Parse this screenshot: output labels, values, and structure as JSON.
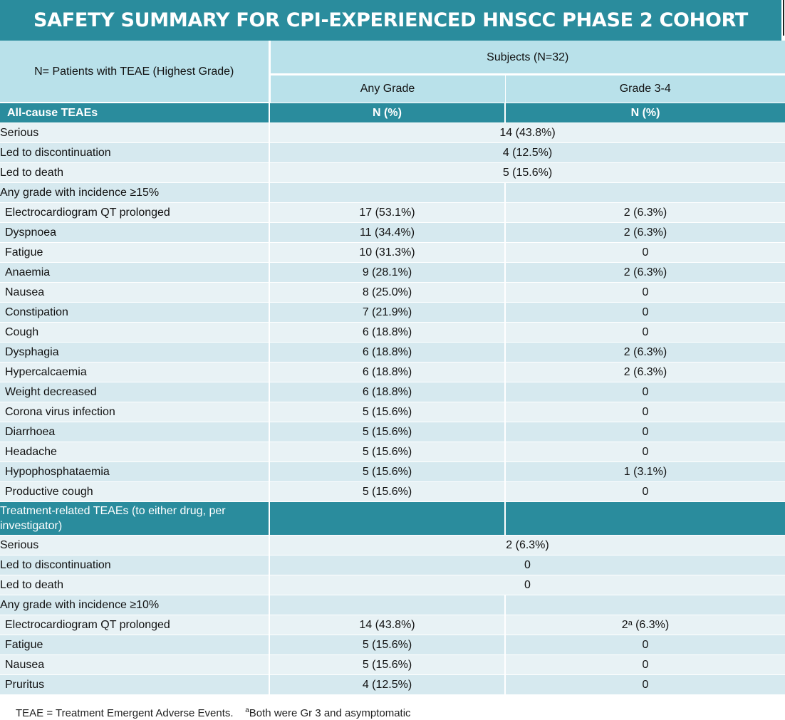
{
  "title": "SAFETY SUMMARY FOR CPI-EXPERIENCED HNSCC PHASE 2 COHORT",
  "header": {
    "row_label": "N= Patients with TEAE (Highest Grade)",
    "subjects": "Subjects (N=32)",
    "col_any": "Any Grade",
    "col_g34": "Grade 3-4"
  },
  "section1": {
    "label": "All-cause TEAEs",
    "col_any": "N (%)",
    "col_g34": "N (%)",
    "overall": [
      {
        "label": "Serious",
        "value": "14 (43.8%)"
      },
      {
        "label": "Led to discontinuation",
        "value": "4 (12.5%)"
      },
      {
        "label": "Led to death",
        "value": "5 (15.6%)"
      }
    ],
    "incidence_label": "Any grade with incidence ≥15%",
    "events": [
      {
        "label": "Electrocardiogram QT prolonged",
        "any": "17 (53.1%)",
        "g34": "2 (6.3%)"
      },
      {
        "label": "Dyspnoea",
        "any": "11 (34.4%)",
        "g34": "2 (6.3%)"
      },
      {
        "label": "Fatigue",
        "any": "10 (31.3%)",
        "g34": "0"
      },
      {
        "label": "Anaemia",
        "any": "9 (28.1%)",
        "g34": "2 (6.3%)"
      },
      {
        "label": "Nausea",
        "any": "8 (25.0%)",
        "g34": "0"
      },
      {
        "label": "Constipation",
        "any": "7 (21.9%)",
        "g34": "0"
      },
      {
        "label": "Cough",
        "any": "6 (18.8%)",
        "g34": "0"
      },
      {
        "label": "Dysphagia",
        "any": "6 (18.8%)",
        "g34": "2 (6.3%)"
      },
      {
        "label": "Hypercalcaemia",
        "any": "6 (18.8%)",
        "g34": "2 (6.3%)"
      },
      {
        "label": "Weight decreased",
        "any": "6 (18.8%)",
        "g34": "0"
      },
      {
        "label": "Corona virus infection",
        "any": "5 (15.6%)",
        "g34": "0"
      },
      {
        "label": "Diarrhoea",
        "any": "5 (15.6%)",
        "g34": "0"
      },
      {
        "label": "Headache",
        "any": "5 (15.6%)",
        "g34": "0"
      },
      {
        "label": "Hypophosphataemia",
        "any": "5 (15.6%)",
        "g34": "1 (3.1%)"
      },
      {
        "label": "Productive cough",
        "any": "5 (15.6%)",
        "g34": "0"
      }
    ]
  },
  "section2": {
    "label": "Treatment-related TEAEs (to either drug, per investigator)",
    "overall": [
      {
        "label": "Serious",
        "value": "2 (6.3%)"
      },
      {
        "label": "Led to discontinuation",
        "value": "0"
      },
      {
        "label": "Led to death",
        "value": "0"
      }
    ],
    "incidence_label": "Any grade with incidence ≥10%",
    "events": [
      {
        "label": "Electrocardiogram QT prolonged",
        "any": "14 (43.8%)",
        "g34": "2ᵃ (6.3%)"
      },
      {
        "label": "Fatigue",
        "any": "5 (15.6%)",
        "g34": "0"
      },
      {
        "label": "Nausea",
        "any": "5 (15.6%)",
        "g34": "0"
      },
      {
        "label": "Pruritus",
        "any": "4 (12.5%)",
        "g34": "0"
      }
    ]
  },
  "footer": {
    "definition": "TEAE = Treatment Emergent Adverse Events.",
    "note_marker": "a",
    "note": "Both were Gr 3 and asymptomatic"
  },
  "colors": {
    "title_bg": "#2a8c9d",
    "header_bg": "#b9e1ea",
    "row_dark": "#d6e9ef",
    "row_light": "#e8f2f5"
  }
}
